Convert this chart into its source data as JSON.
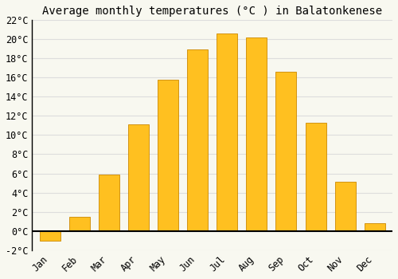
{
  "title": "Average monthly temperatures (°C ) in Balatonkenese",
  "months": [
    "Jan",
    "Feb",
    "Mar",
    "Apr",
    "May",
    "Jun",
    "Jul",
    "Aug",
    "Sep",
    "Oct",
    "Nov",
    "Dec"
  ],
  "values": [
    -1.0,
    1.5,
    5.9,
    11.1,
    15.8,
    18.9,
    20.6,
    20.2,
    16.6,
    11.3,
    5.1,
    0.8
  ],
  "bar_color": "#FFC020",
  "bar_edge_color": "#CC8800",
  "ylim": [
    -2,
    22
  ],
  "yticks": [
    -2,
    0,
    2,
    4,
    6,
    8,
    10,
    12,
    14,
    16,
    18,
    20,
    22
  ],
  "background_color": "#F8F8F0",
  "grid_color": "#DDDDDD",
  "title_fontsize": 10,
  "tick_fontsize": 8.5,
  "font_family": "monospace",
  "bar_width": 0.7
}
